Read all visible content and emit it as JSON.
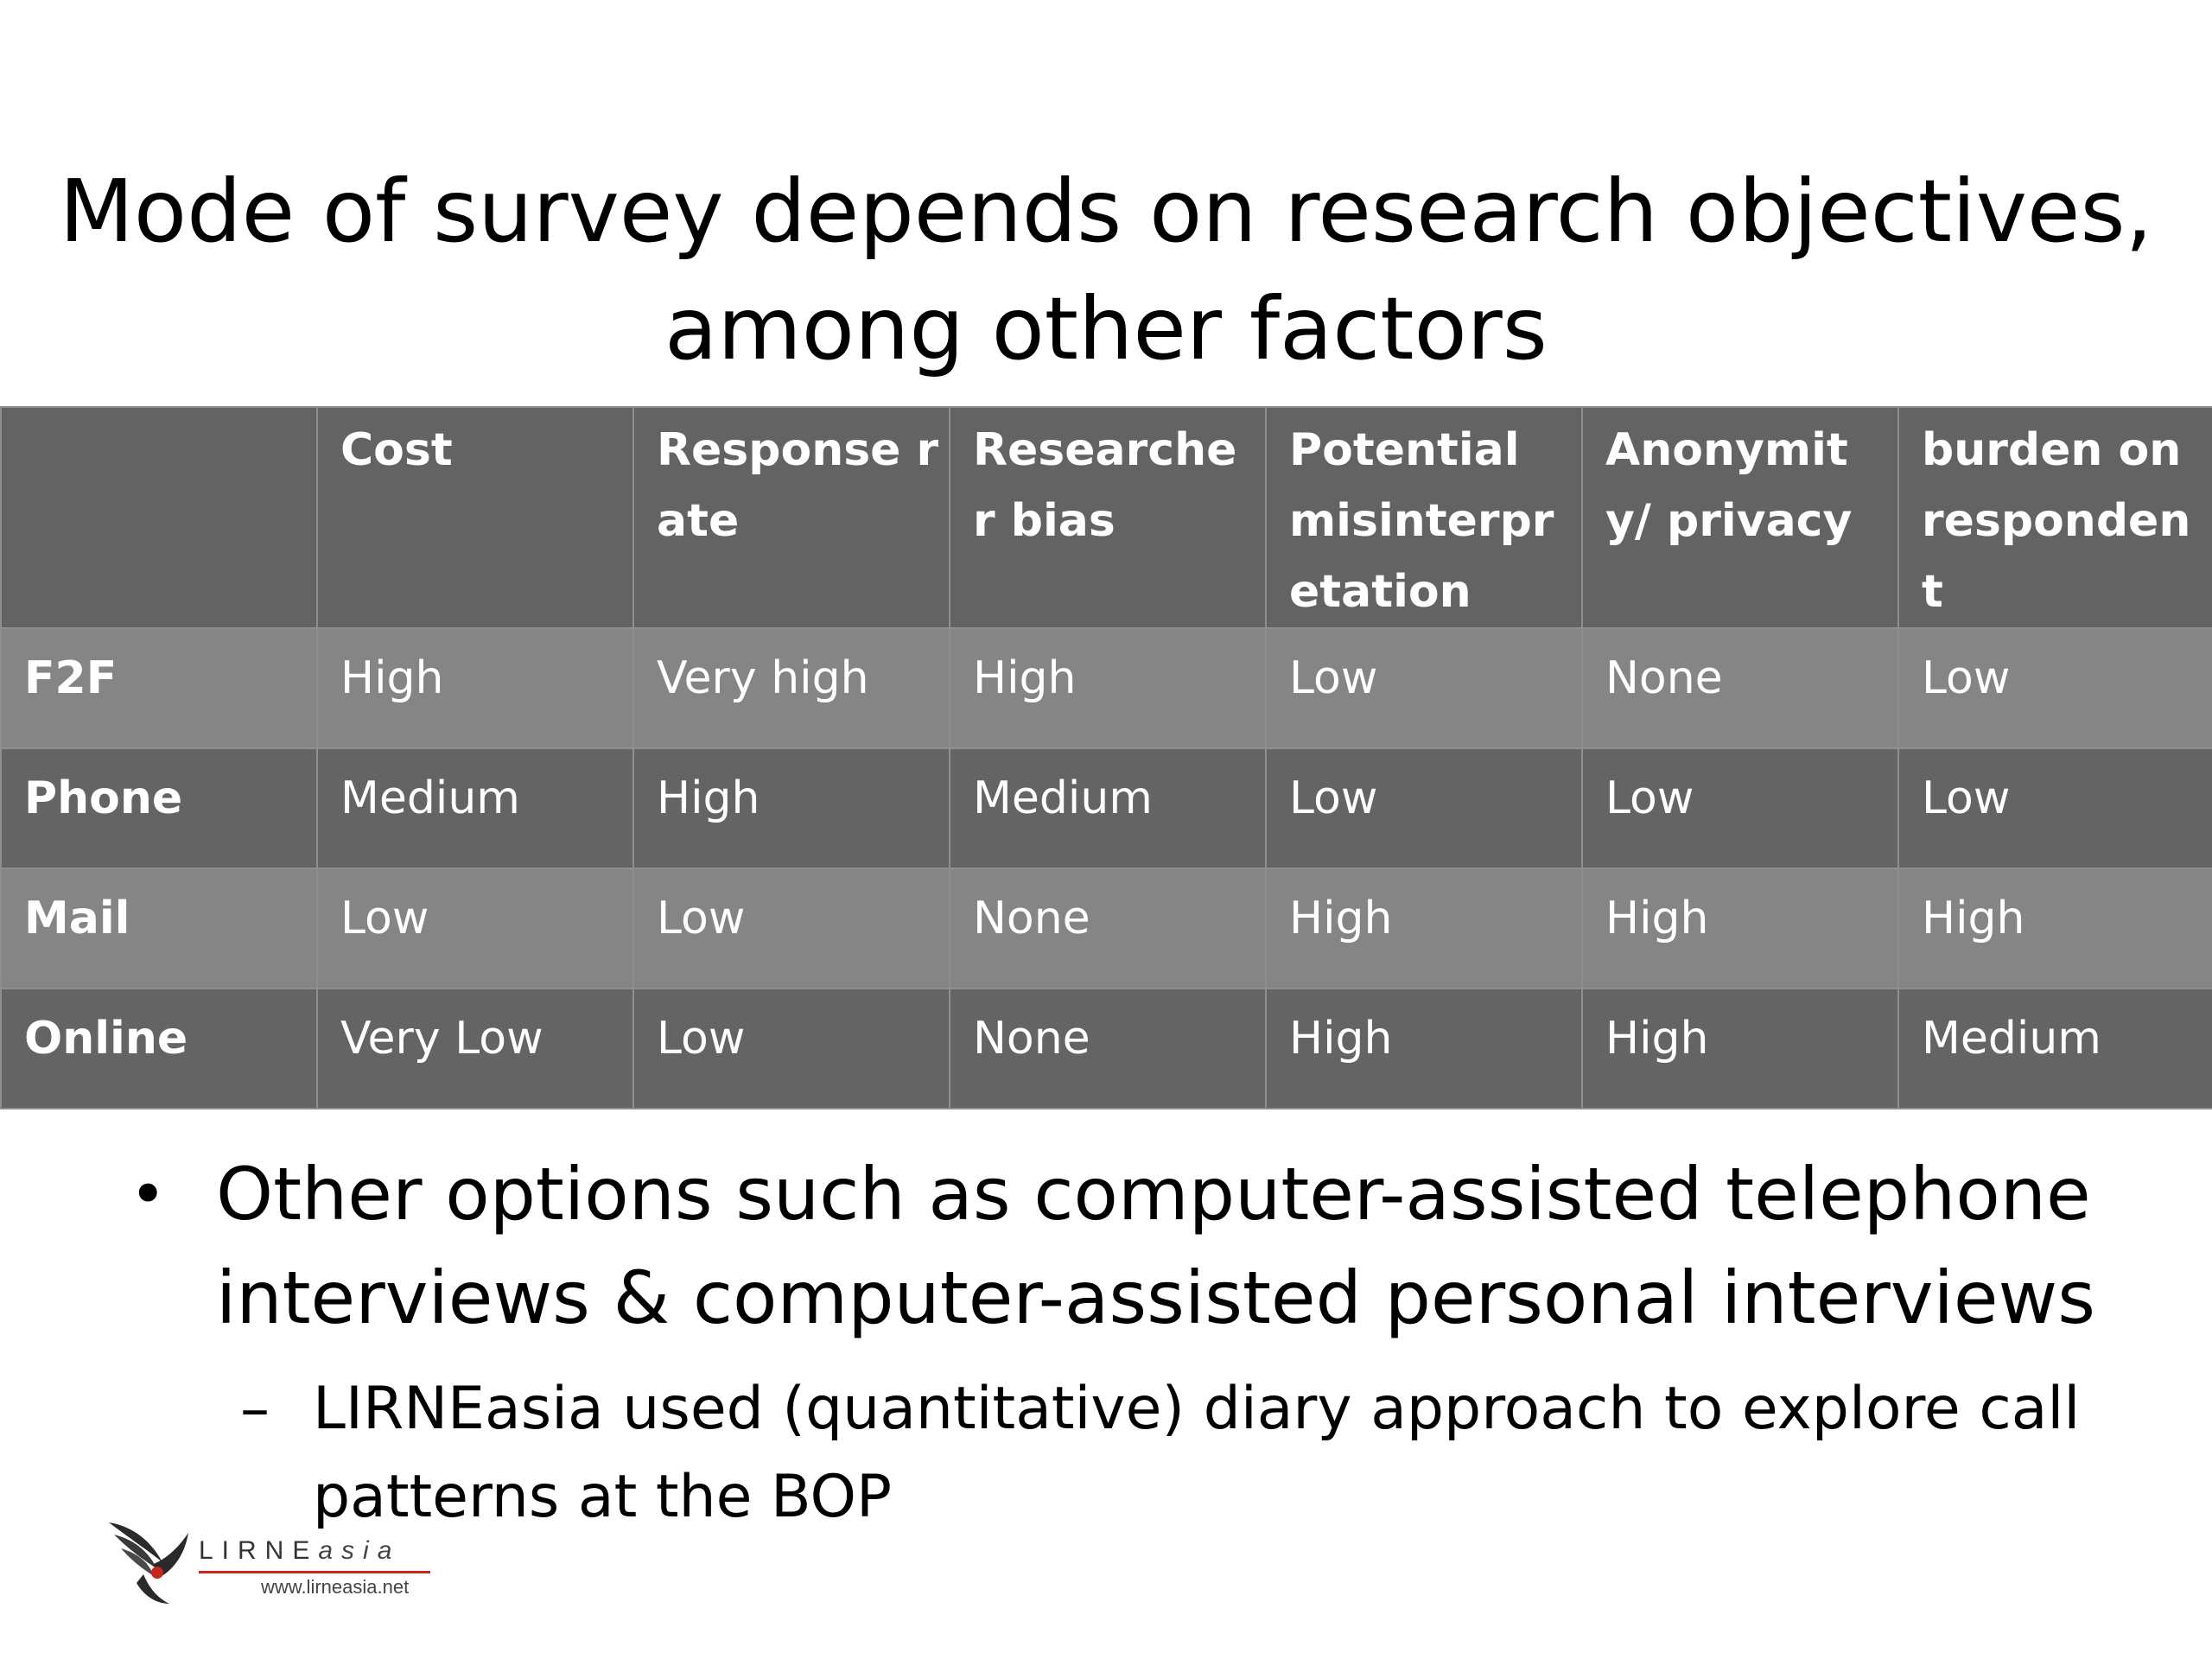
{
  "slide": {
    "title_lines": [
      "Mode of survey depends on research objectives,",
      "among other factors"
    ]
  },
  "table": {
    "headers": [
      "",
      "Cost",
      "Response rate",
      "Researcher bias",
      "Potential misinterpretation",
      "Anonymity/ privacy",
      " burden on respondent"
    ],
    "rows": [
      {
        "mode": "F2F",
        "cells": [
          "High",
          "Very high",
          "High",
          "Low",
          "None",
          "Low"
        ]
      },
      {
        "mode": "Phone",
        "cells": [
          "Medium",
          "High",
          "Medium",
          "Low",
          "Low",
          "Low"
        ]
      },
      {
        "mode": "Mail",
        "cells": [
          "Low",
          "Low",
          "None",
          "High",
          "High",
          "High"
        ]
      },
      {
        "mode": "Online",
        "cells": [
          "Very Low",
          "Low",
          "None",
          "High",
          "High",
          "Medium"
        ]
      }
    ]
  },
  "bullets": {
    "level1": {
      "marker": "•",
      "text": "Other options such as computer-assisted telephone interviews & computer-assisted personal interviews"
    },
    "level2": {
      "marker": "–",
      "text": "LIRNEasia used (quantitative) diary approach to explore call patterns at the BOP"
    }
  },
  "logo": {
    "wordmark_main": "LIRNE",
    "wordmark_suffix": "asia",
    "url": "www.lirneasia.net",
    "accent_color": "#c8261c"
  }
}
